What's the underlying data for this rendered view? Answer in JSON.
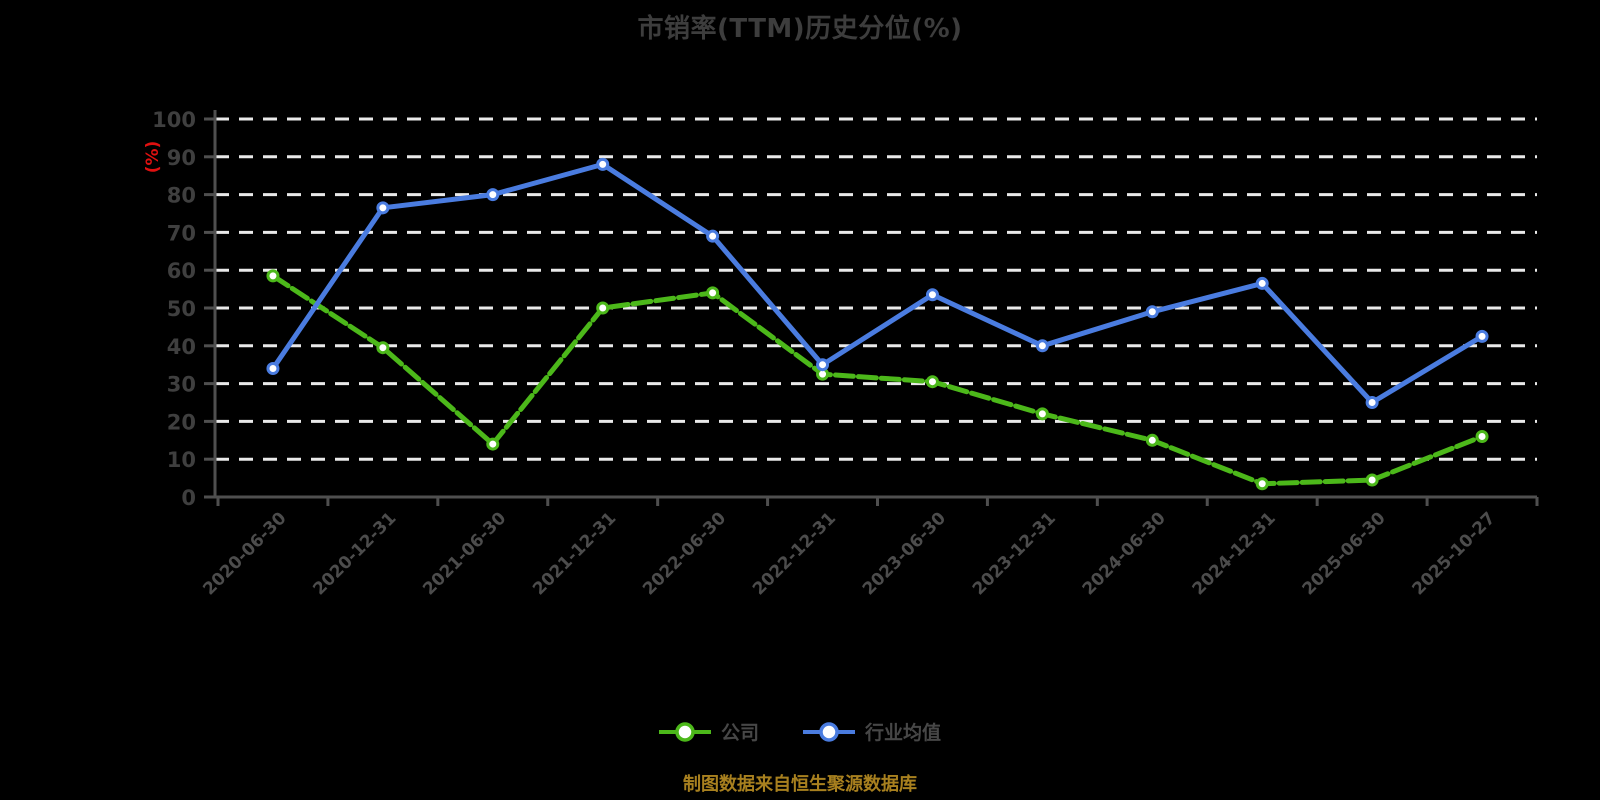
{
  "title": "市销率(TTM)历史分位(%)",
  "y_axis_unit": "(%)",
  "footer": "制图数据来自恒生聚源数据库",
  "legend": [
    {
      "label": "公司",
      "color": "#4cb81a"
    },
    {
      "label": "行业均值",
      "color": "#4a7ce0"
    }
  ],
  "colors": {
    "background": "#000000",
    "title_text": "#3d3d3d",
    "axis": "#4f4f4f",
    "tick_label": "#3f3f3f",
    "date_label": "#4c4c4c",
    "grid": "#e9e9e9",
    "company_green": "#4cb81a",
    "industry_blue": "#4a7ce0",
    "unit_red": "#e01010",
    "footer_gold": "#a8801f",
    "legend_text": "#474747",
    "marker_fill": "#ffffff"
  },
  "chart_data": {
    "type": "line",
    "title": "市销率(TTM)历史分位(%)",
    "ylabel": "(%)",
    "ylim": [
      0,
      100
    ],
    "yticks": [
      0,
      10,
      20,
      30,
      40,
      50,
      60,
      70,
      80,
      90,
      100
    ],
    "grid": "horizontal-dashed",
    "legend_position": "bottom",
    "categories": [
      "2020-06-30",
      "2020-12-31",
      "2021-06-30",
      "2021-12-31",
      "2022-06-30",
      "2022-12-31",
      "2023-06-30",
      "2023-12-31",
      "2024-06-30",
      "2024-12-31",
      "2025-06-30",
      "2025-10-27"
    ],
    "series": [
      {
        "name": "公司",
        "color": "#4cb81a",
        "style": "dashed",
        "values": [
          58.5,
          39.5,
          14,
          50,
          54,
          32.5,
          30.5,
          22,
          15,
          3.5,
          4.5,
          16
        ]
      },
      {
        "name": "行业均值",
        "color": "#4a7ce0",
        "style": "solid",
        "values": [
          34,
          76.5,
          80,
          88,
          69,
          35,
          53.5,
          40,
          49,
          56.5,
          25,
          42.5
        ]
      }
    ]
  }
}
